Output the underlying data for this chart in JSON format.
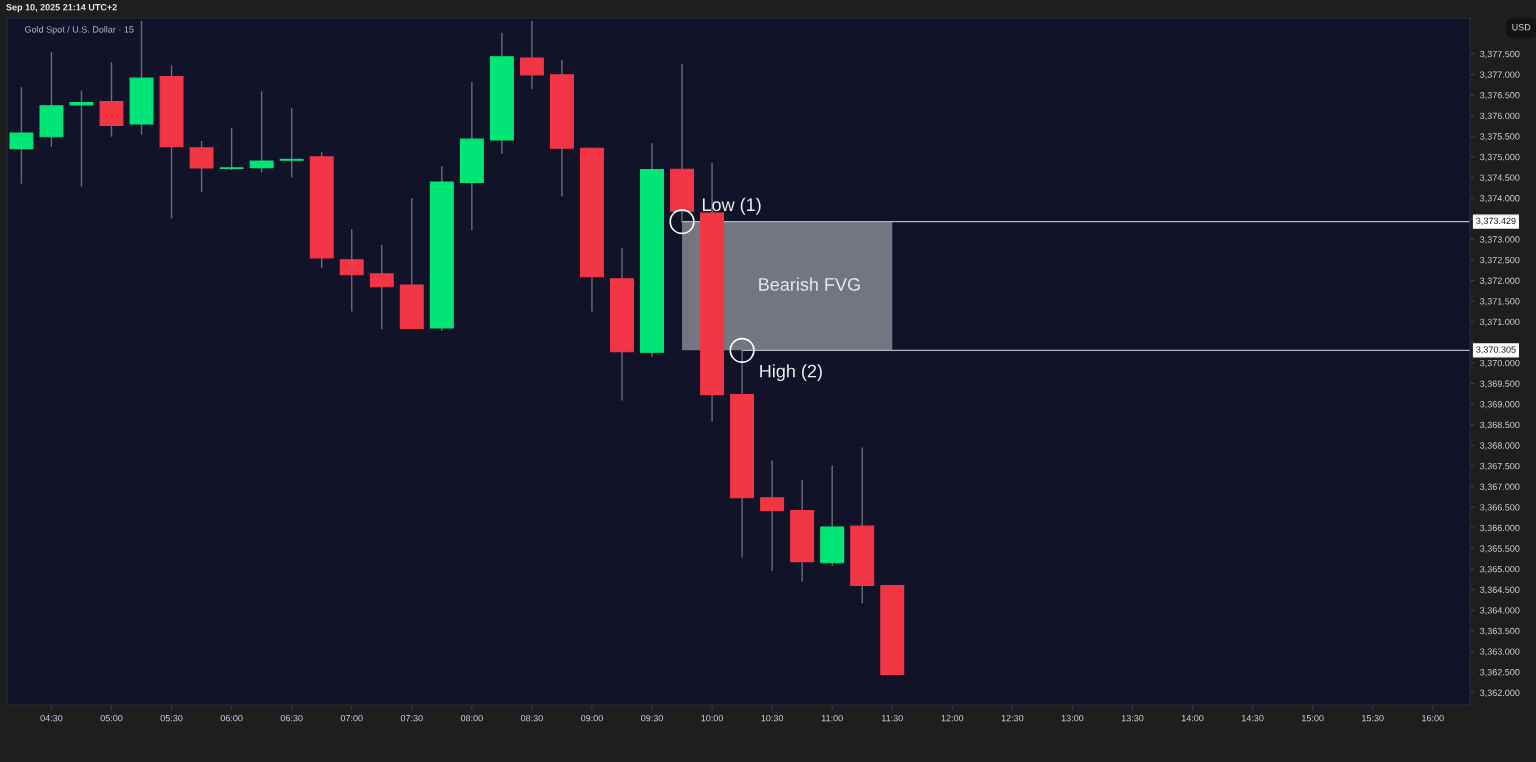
{
  "chart_data": {
    "type": "candlestick",
    "title": "Gold Spot / U.S. Dollar · 15",
    "ylabel": "USD",
    "x": [
      4.25,
      4.5,
      4.75,
      5.0,
      5.25,
      5.5,
      5.75,
      6.0,
      6.25,
      6.5,
      6.75,
      7.0,
      7.25,
      7.5,
      7.75,
      8.0,
      8.25,
      8.5,
      8.75,
      9.0,
      9.25,
      9.5,
      9.75,
      10.0,
      10.25,
      10.5,
      10.75,
      11.0,
      11.25,
      11.5
    ],
    "ohlc": [
      [
        3375.2,
        3376.69,
        3374.35,
        3375.58
      ],
      [
        3375.49,
        3377.54,
        3375.24,
        3376.24
      ],
      [
        3376.26,
        3376.61,
        3374.28,
        3376.32
      ],
      [
        3376.34,
        3377.3,
        3375.49,
        3375.76
      ],
      [
        3375.8,
        3378.3,
        3375.54,
        3376.91
      ],
      [
        3376.95,
        3377.22,
        3373.51,
        3375.25
      ],
      [
        3375.22,
        3375.39,
        3374.15,
        3374.73
      ],
      [
        3374.72,
        3375.7,
        3374.68,
        3374.73
      ],
      [
        3374.74,
        3376.59,
        3374.62,
        3374.9
      ],
      [
        3374.92,
        3376.18,
        3374.5,
        3374.94
      ],
      [
        3375.0,
        3375.11,
        3372.31,
        3372.55
      ],
      [
        3372.5,
        3373.25,
        3371.25,
        3372.14
      ],
      [
        3372.16,
        3372.87,
        3370.82,
        3371.85
      ],
      [
        3371.89,
        3374.0,
        3370.83,
        3370.84
      ],
      [
        3370.85,
        3374.78,
        3370.78,
        3374.39
      ],
      [
        3374.38,
        3376.82,
        3373.22,
        3375.43
      ],
      [
        3375.41,
        3378.01,
        3375.07,
        3377.43
      ],
      [
        3377.4,
        3378.3,
        3376.65,
        3376.99
      ],
      [
        3376.99,
        3377.35,
        3374.04,
        3375.21
      ],
      [
        3375.21,
        3375.23,
        3371.25,
        3372.09
      ],
      [
        3372.04,
        3372.79,
        3369.09,
        3370.27
      ],
      [
        3370.26,
        3375.33,
        3370.15,
        3374.69
      ],
      [
        3374.7,
        3377.26,
        3373.429,
        3373.68
      ],
      [
        3373.64,
        3374.85,
        3368.58,
        3369.23
      ],
      [
        3369.23,
        3370.305,
        3365.28,
        3366.73
      ],
      [
        3366.73,
        3367.63,
        3364.95,
        3366.42
      ],
      [
        3366.42,
        3367.16,
        3364.69,
        3365.18
      ],
      [
        3365.15,
        3367.51,
        3365.08,
        3366.02
      ],
      [
        3366.04,
        3367.95,
        3364.17,
        3364.6
      ],
      [
        3364.6,
        3364.6,
        3362.42,
        3362.44
      ]
    ],
    "colors": [
      "#00e676",
      "#00e676",
      "#00e676",
      "#f23645",
      "#00e676",
      "#f23645",
      "#f23645",
      "#00e676",
      "#00e676",
      "#00e676",
      "#f23645",
      "#f23645",
      "#f23645",
      "#f23645",
      "#00e676",
      "#00e676",
      "#00e676",
      "#f23645",
      "#f23645",
      "#f23645",
      "#f23645",
      "#00e676",
      "#f23645",
      "#f23645",
      "#f23645",
      "#f23645",
      "#f23645",
      "#00e676",
      "#f23645",
      "#f23645"
    ],
    "xlim": [
      4.13,
      16.31
    ],
    "ylim": [
      3361.7,
      3378.37
    ],
    "xticks": [
      {
        "value": 4.5,
        "label": "04:30"
      },
      {
        "value": 5.0,
        "label": "05:00"
      },
      {
        "value": 5.5,
        "label": "05:30"
      },
      {
        "value": 6.0,
        "label": "06:00"
      },
      {
        "value": 6.5,
        "label": "06:30"
      },
      {
        "value": 7.0,
        "label": "07:00"
      },
      {
        "value": 7.5,
        "label": "07:30"
      },
      {
        "value": 8.0,
        "label": "08:00"
      },
      {
        "value": 8.5,
        "label": "08:30"
      },
      {
        "value": 9.0,
        "label": "09:00"
      },
      {
        "value": 9.5,
        "label": "09:30"
      },
      {
        "value": 10.0,
        "label": "10:00"
      },
      {
        "value": 10.5,
        "label": "10:30"
      },
      {
        "value": 11.0,
        "label": "11:00"
      },
      {
        "value": 11.5,
        "label": "11:30"
      },
      {
        "value": 12.0,
        "label": "12:00"
      },
      {
        "value": 12.5,
        "label": "12:30"
      },
      {
        "value": 13.0,
        "label": "13:00"
      },
      {
        "value": 13.5,
        "label": "13:30"
      },
      {
        "value": 14.0,
        "label": "14:00"
      },
      {
        "value": 14.5,
        "label": "14:30"
      },
      {
        "value": 15.0,
        "label": "15:00"
      },
      {
        "value": 15.5,
        "label": "15:30"
      },
      {
        "value": 16.0,
        "label": "16:00"
      }
    ],
    "yticks": [
      {
        "value": 3362.0,
        "label": "3,362.000"
      },
      {
        "value": 3362.5,
        "label": "3,362.500"
      },
      {
        "value": 3363.0,
        "label": "3,363.000"
      },
      {
        "value": 3363.5,
        "label": "3,363.500"
      },
      {
        "value": 3364.0,
        "label": "3,364.000"
      },
      {
        "value": 3364.5,
        "label": "3,364.500"
      },
      {
        "value": 3365.0,
        "label": "3,365.000"
      },
      {
        "value": 3365.5,
        "label": "3,365.500"
      },
      {
        "value": 3366.0,
        "label": "3,366.000"
      },
      {
        "value": 3366.5,
        "label": "3,366.500"
      },
      {
        "value": 3367.0,
        "label": "3,367.000"
      },
      {
        "value": 3367.5,
        "label": "3,367.500"
      },
      {
        "value": 3368.0,
        "label": "3,368.000"
      },
      {
        "value": 3368.5,
        "label": "3,368.500"
      },
      {
        "value": 3369.0,
        "label": "3,369.000"
      },
      {
        "value": 3369.5,
        "label": "3,369.500"
      },
      {
        "value": 3370.0,
        "label": "3,370.000"
      },
      {
        "value": 3370.5,
        "label": null
      },
      {
        "value": 3371.0,
        "label": "3,371.000"
      },
      {
        "value": 3371.5,
        "label": "3,371.500"
      },
      {
        "value": 3372.0,
        "label": "3,372.000"
      },
      {
        "value": 3372.5,
        "label": "3,372.500"
      },
      {
        "value": 3373.0,
        "label": "3,373.000"
      },
      {
        "value": 3373.5,
        "label": null
      },
      {
        "value": 3374.0,
        "label": "3,374.000"
      },
      {
        "value": 3374.5,
        "label": "3,374.500"
      },
      {
        "value": 3375.0,
        "label": "3,375.000"
      },
      {
        "value": 3375.5,
        "label": "3,375.500"
      },
      {
        "value": 3376.0,
        "label": "3,376.000"
      },
      {
        "value": 3376.5,
        "label": "3,376.500"
      },
      {
        "value": 3377.0,
        "label": "3,377.000"
      },
      {
        "value": 3377.5,
        "label": "3,377.500"
      }
    ],
    "ref_lines": [
      {
        "axis": "y",
        "value": 3373.429,
        "label": "3,373.429",
        "color": "#b2b5be"
      },
      {
        "axis": "y",
        "value": 3370.305,
        "label": "3,370.305",
        "color": "#b2b5be"
      }
    ],
    "bands": [
      {
        "axis": "y",
        "from": 3370.305,
        "to": 3373.429,
        "label": "Bearish FVG",
        "color": "#787b86"
      }
    ],
    "annotations": [
      "Sep 10, 2025 21:14 UTC+2",
      {
        "text": "Low (1)",
        "x": 9.75,
        "y": 3373.429
      },
      {
        "text": "High (2)",
        "x": 10.25,
        "y": 3370.305
      }
    ],
    "grid": false
  }
}
